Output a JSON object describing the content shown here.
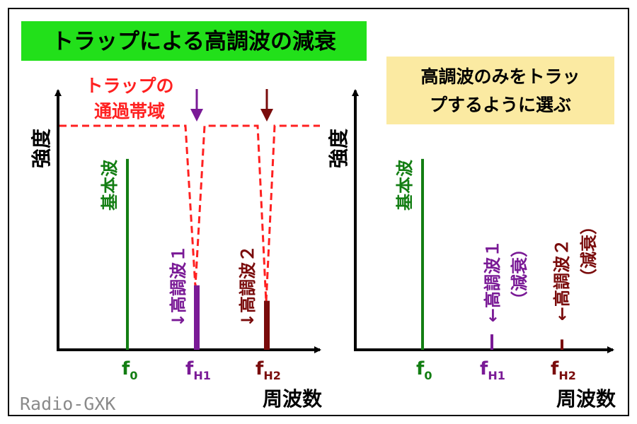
{
  "title": "トラップによる高調波の減衰",
  "note": {
    "line1": "高調波のみをトラッ",
    "line2": "プするように選ぶ"
  },
  "watermark": "Radio-GXK",
  "left": {
    "y_label": "強度",
    "x_label": "周波数",
    "passband_label": {
      "line1": "トラップの",
      "line2": "通過帯域"
    },
    "fundamental_label": "基本波",
    "harmonic1_label": "↓高調波１",
    "harmonic2_label": "↓高調波２",
    "ticks": {
      "f0": "f",
      "f0_sub": "0",
      "fH1": "f",
      "fH1_sub": "H1",
      "fH2": "f",
      "fH2_sub": "H2"
    },
    "levels": {
      "fundamental": 0.74,
      "harmonic1": 0.25,
      "harmonic2": 0.19,
      "passband": 0.79
    }
  },
  "right": {
    "y_label": "強度",
    "x_label": "周波数",
    "fundamental_label": "基本波",
    "harmonic1_label": "←高調波１",
    "harmonic1_sub": "（減衰）",
    "harmonic2_label": "←高調波２",
    "harmonic2_sub": "（減衰）",
    "ticks": {
      "f0": "f",
      "f0_sub": "0",
      "fH1": "f",
      "fH1_sub": "H1",
      "fH2": "f",
      "fH2_sub": "H2"
    },
    "levels": {
      "fundamental": 0.74,
      "harmonic1": 0.06,
      "harmonic2": 0.04
    }
  },
  "colors": {
    "frame": "#000000",
    "title_bg": "#22e01a",
    "note_bg": "#fbeaa2",
    "fundamental": "#137e13",
    "harmonic1": "#7a1a96",
    "harmonic2": "#7a0c0c",
    "passband": "#ff2020",
    "watermark": "#8a8a8a"
  }
}
